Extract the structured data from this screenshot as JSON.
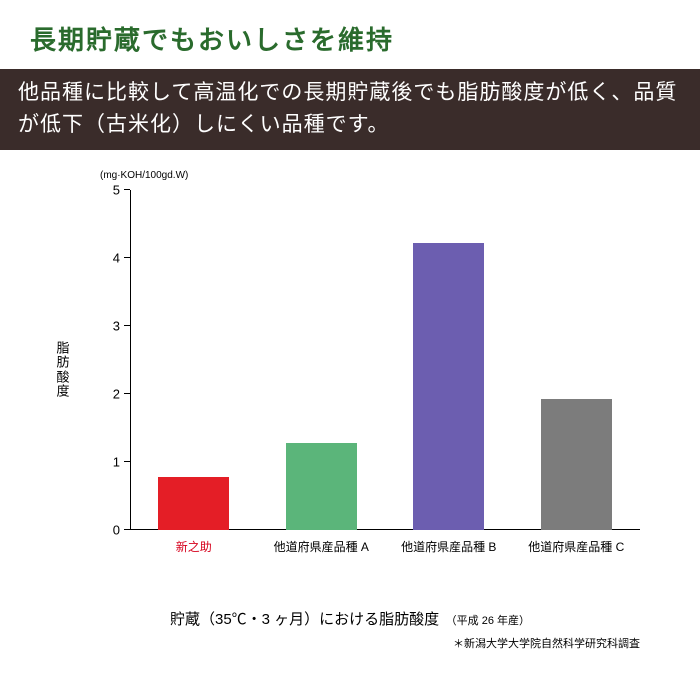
{
  "title": "長期貯蔵でもおいしさを維持",
  "title_color": "#2a6b2d",
  "title_fontsize": 26,
  "subtitle": "他品種に比較して高温化での長期貯蔵後でも脂肪酸度が低く、品質が低下（古米化）しにくい品種です。",
  "subtitle_bg": "#3a2c2a",
  "subtitle_color": "#ffffff",
  "subtitle_fontsize": 21,
  "chart": {
    "type": "bar",
    "unit_label": "(mg·KOH/100gd.W)",
    "unit_fontsize": 10,
    "y_axis_title": "脂肪酸度",
    "y_axis_title_fontsize": 13,
    "ylim": [
      0,
      5
    ],
    "ytick_step": 1,
    "ytick_fontsize": 13,
    "categories": [
      "新之助",
      "他道府県産品種 A",
      "他道府県産品種 B",
      "他道府県産品種 C"
    ],
    "category_colors": [
      "#d6001c",
      "#000000",
      "#000000",
      "#000000"
    ],
    "category_fontsize": 12,
    "values": [
      0.78,
      1.28,
      4.22,
      1.92
    ],
    "bar_colors": [
      "#e41e26",
      "#5bb57a",
      "#6c5eb0",
      "#7c7c7c"
    ],
    "bar_width_pct": 56,
    "background_color": "#ffffff",
    "axis_color": "#000000"
  },
  "caption_main": "貯蔵（35℃・3 ヶ月）における脂肪酸度",
  "caption_main_fontsize": 15,
  "caption_sub": "（平成 26 年産）",
  "caption_sub_fontsize": 11,
  "source": "＊新潟大学大学院自然科学研究科調査",
  "source_fontsize": 11
}
